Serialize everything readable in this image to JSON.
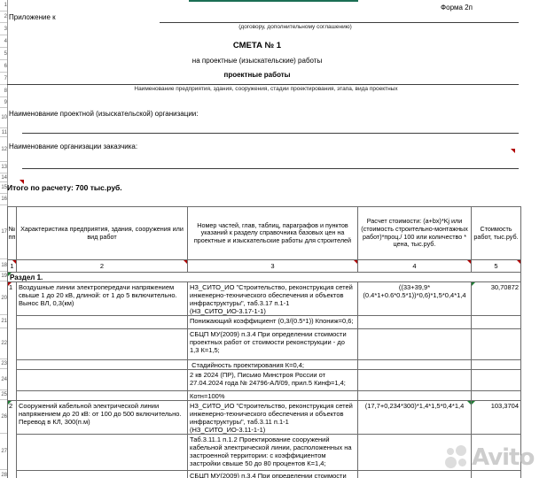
{
  "colors": {
    "accent": "#1b6e54",
    "red": "#b00000",
    "green": "#1e7e34",
    "bd": "#6b6b6b",
    "gutter": "#c9c9c9",
    "wmc": "#bdbdbd"
  },
  "page": {
    "form_label": "Форма 2п",
    "attachment_label": "Приложение к",
    "agreement_caption": "(договору, дополнительному соглашению)",
    "title": "СМЕТА № 1",
    "subtitle": "на проектные (изыскательские)  работы",
    "work_type": "проектные работы",
    "object_caption": "Наименование предприятия, здания, сооружения, стадии проектирования, этапа, вида проектных",
    "designer_label": "Наименование проектной (изыскательской) организации:",
    "customer_label": "Наименование организации заказчика:",
    "total_line": "Итого по расчету: 700 тыс.руб."
  },
  "table": {
    "headers": {
      "num": "№ пп",
      "characteristic": "Характеристика предприятия, здания, сооружения или вид работ",
      "reference": "Номер частей, глав, таблиц, параграфов и пунктов указаний к разделу справочника базовых цен на проектные и изыскательские работы для строителей",
      "calc": "Расчет стоимости: (a+bx)*Kj или (стоимость строительно-монтажных работ)*проц./ 100 или количество * цена, тыс.руб.",
      "cost": "Стоимость работ, тыс.руб."
    },
    "col_numbers": [
      "1",
      "2",
      "3",
      "4",
      "5"
    ],
    "section_title": "Раздел 1.",
    "rows": [
      {
        "num": "1",
        "characteristic": "Воздушные линии электропередачи напряжением свыше 1 до 20 кВ, длиной: от 1 до 5 включительно. Вынос ВЛ, 0,3(км)",
        "reference": "НЗ_СИТО_ИО \"Строительство, реконструкция сетей инженерно-технического обеспечения и объектов инфраструктуры\", таб.3.17 п.1-1",
        "reference_code": "(НЗ_СИТО_ИО-3.17-1-1)",
        "calc": "((33+39,9*(0.4*1+0.6*0.5*1))*0,6)*1,5*0,4*1,4",
        "cost": "30,70872",
        "notes": [
          "Понижающий коэффициент (0,3/(0.5*1)) Кпониж=0,6;",
          "СБЦП МУ(2009) п.3.4 При определении стоимости проектных работ от стоимости реконструкции - до 1,3 К=1,5;",
          " Стадийность проектирования К=0,4;",
          "2 кв 2024 (ПР), Письмо Минстроя России от 27.04.2024 года № 24796-АЛ/09, прил.5 Кинф=1,4;",
          "Котн=100%"
        ]
      },
      {
        "num": "2",
        "characteristic": "Сооружений кабельной электрической линии напряжением до 20 кВ: от 100 до 500 включительно. Перевод в КЛ, 300(п.м)",
        "reference": "НЗ_СИТО_ИО \"Строительство, реконструкция сетей инженерно-технического обеспечения и объектов инфраструктуры\", таб.3.11 п.1-1",
        "reference_code": "(НЗ_СИТО_ИО-3.11-1-1)",
        "calc": "(17,7+0,234*300)*1,4*1,5*0,4*1,4",
        "cost": "103,3704",
        "notes": [
          "Таб.3.11.1 п.1.2 Проектирование сооружений кабельной электрической линии, расположенных на застроенной территории: с коэффициентом застройки свыше 50 до 80 процентов К=1,4;",
          "СБЦП МУ(2009) п.3.4 При определении стоимости"
        ]
      }
    ]
  },
  "gutter_numbers": [
    "1",
    "2",
    "3",
    "4",
    "5",
    "6",
    "7",
    "8",
    "9",
    "10",
    "11",
    "12",
    "13",
    "14",
    "15",
    "16",
    "17",
    "18",
    "19",
    "20",
    "21",
    "22",
    "23",
    "24",
    "25",
    "26",
    "27",
    "28"
  ],
  "watermark": {
    "text": "Avito"
  }
}
